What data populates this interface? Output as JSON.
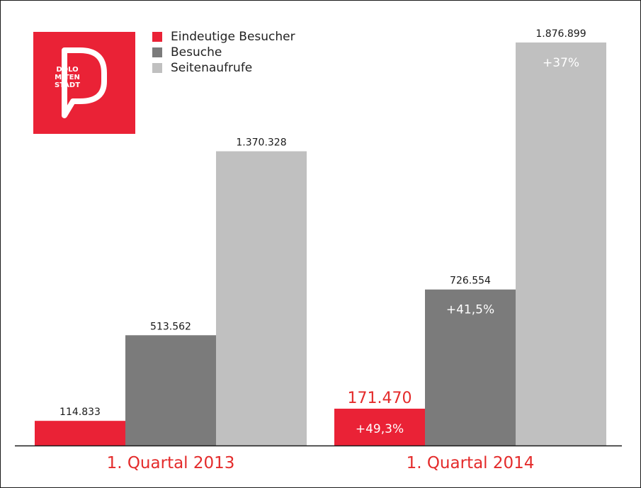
{
  "colors": {
    "unique": "#ea2236",
    "visits": "#7b7b7b",
    "pageviews": "#c0c0c0",
    "axis": "#1a1a1a",
    "label": "#1a1a1a",
    "highlight": "#e42b2b",
    "category": "#e42b2b"
  },
  "logo": {
    "text_lines": [
      "DOLO",
      "MITEN",
      "STADT"
    ],
    "icon": "dolomitenstadt-logo-icon",
    "color": "#ea2236"
  },
  "chart_data": {
    "type": "bar",
    "categories": [
      "1. Quartal 2013",
      "1. Quartal 2014"
    ],
    "series": [
      {
        "name": "Eindeutige Besucher",
        "values": [
          114833,
          171470
        ],
        "labels": [
          "114.833",
          "171.470"
        ],
        "change": [
          "",
          "+49,3%"
        ],
        "color": "#ea2236"
      },
      {
        "name": "Besuche",
        "values": [
          513562,
          726554
        ],
        "labels": [
          "513.562",
          "726.554"
        ],
        "change": [
          "",
          "+41,5%"
        ],
        "color": "#7b7b7b"
      },
      {
        "name": "Seitenaufrufe",
        "values": [
          1370328,
          1876899
        ],
        "labels": [
          "1.370.328",
          "1.876.899"
        ],
        "change": [
          "",
          "+37%"
        ],
        "color": "#c0c0c0"
      }
    ],
    "ylim": [
      0,
      1900000
    ],
    "grid": false,
    "legend": "top-left",
    "title": "",
    "xlabel": "",
    "ylabel": ""
  }
}
